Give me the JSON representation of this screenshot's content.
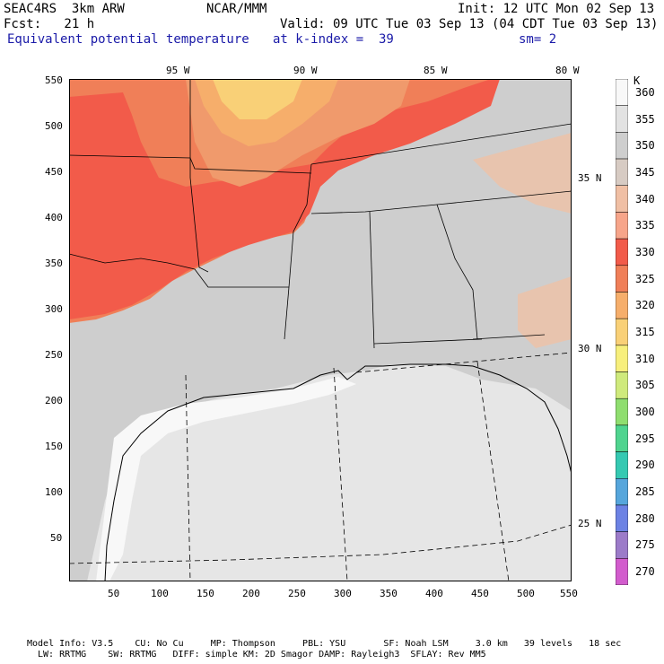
{
  "header": {
    "model": "SEAC4RS  3km ARW",
    "org": "NCAR/MMM",
    "init": "Init: 12 UTC Mon 02 Sep 13",
    "fcst": "Fcst:   21 h",
    "valid": "Valid: 09 UTC Tue 03 Sep 13 (04 CDT Tue 03 Sep 13)",
    "field": "Equivalent potential temperature",
    "level": "at k-index =  39",
    "smooth": "sm= 2"
  },
  "map": {
    "x_ticks": [
      "50",
      "100",
      "150",
      "200",
      "250",
      "300",
      "350",
      "400",
      "450",
      "500",
      "550"
    ],
    "y_ticks": [
      "550",
      "500",
      "450",
      "400",
      "350",
      "300",
      "250",
      "200",
      "150",
      "100",
      "50"
    ],
    "lon_labels": [
      "95 W",
      "90 W",
      "85 W",
      "80 W"
    ],
    "lat_labels": [
      "35 N",
      "30 N",
      "25 N"
    ]
  },
  "colorbar": {
    "unit": "K",
    "levels": [
      "360",
      "355",
      "350",
      "345",
      "340",
      "335",
      "330",
      "325",
      "320",
      "315",
      "310",
      "305",
      "300",
      "295",
      "290",
      "285",
      "280",
      "275",
      "270"
    ],
    "colors": [
      "#f8f8f8",
      "#e2e2e2",
      "#cecece",
      "#d7cbc3",
      "#f0bfa4",
      "#f7a58a",
      "#f25b4a",
      "#f07f58",
      "#f6ae6b",
      "#f9d077",
      "#f7ef7c",
      "#cfea7c",
      "#8fde6f",
      "#4fd48f",
      "#35c9b2",
      "#56a6dc",
      "#6c82e4",
      "#9c7bc9",
      "#d25ccd"
    ]
  },
  "footer": {
    "line1": "Model Info: V3.5    CU: No Cu     MP: Thompson     PBL: YSU       SF: Noah LSM     3.0 km   39 levels   18 sec",
    "line2": "LW: RRTMG    SW: RRTMG   DIFF: simple KM: 2D Smagor DAMP: Rayleigh3  SFLAY: Rev MM5"
  }
}
